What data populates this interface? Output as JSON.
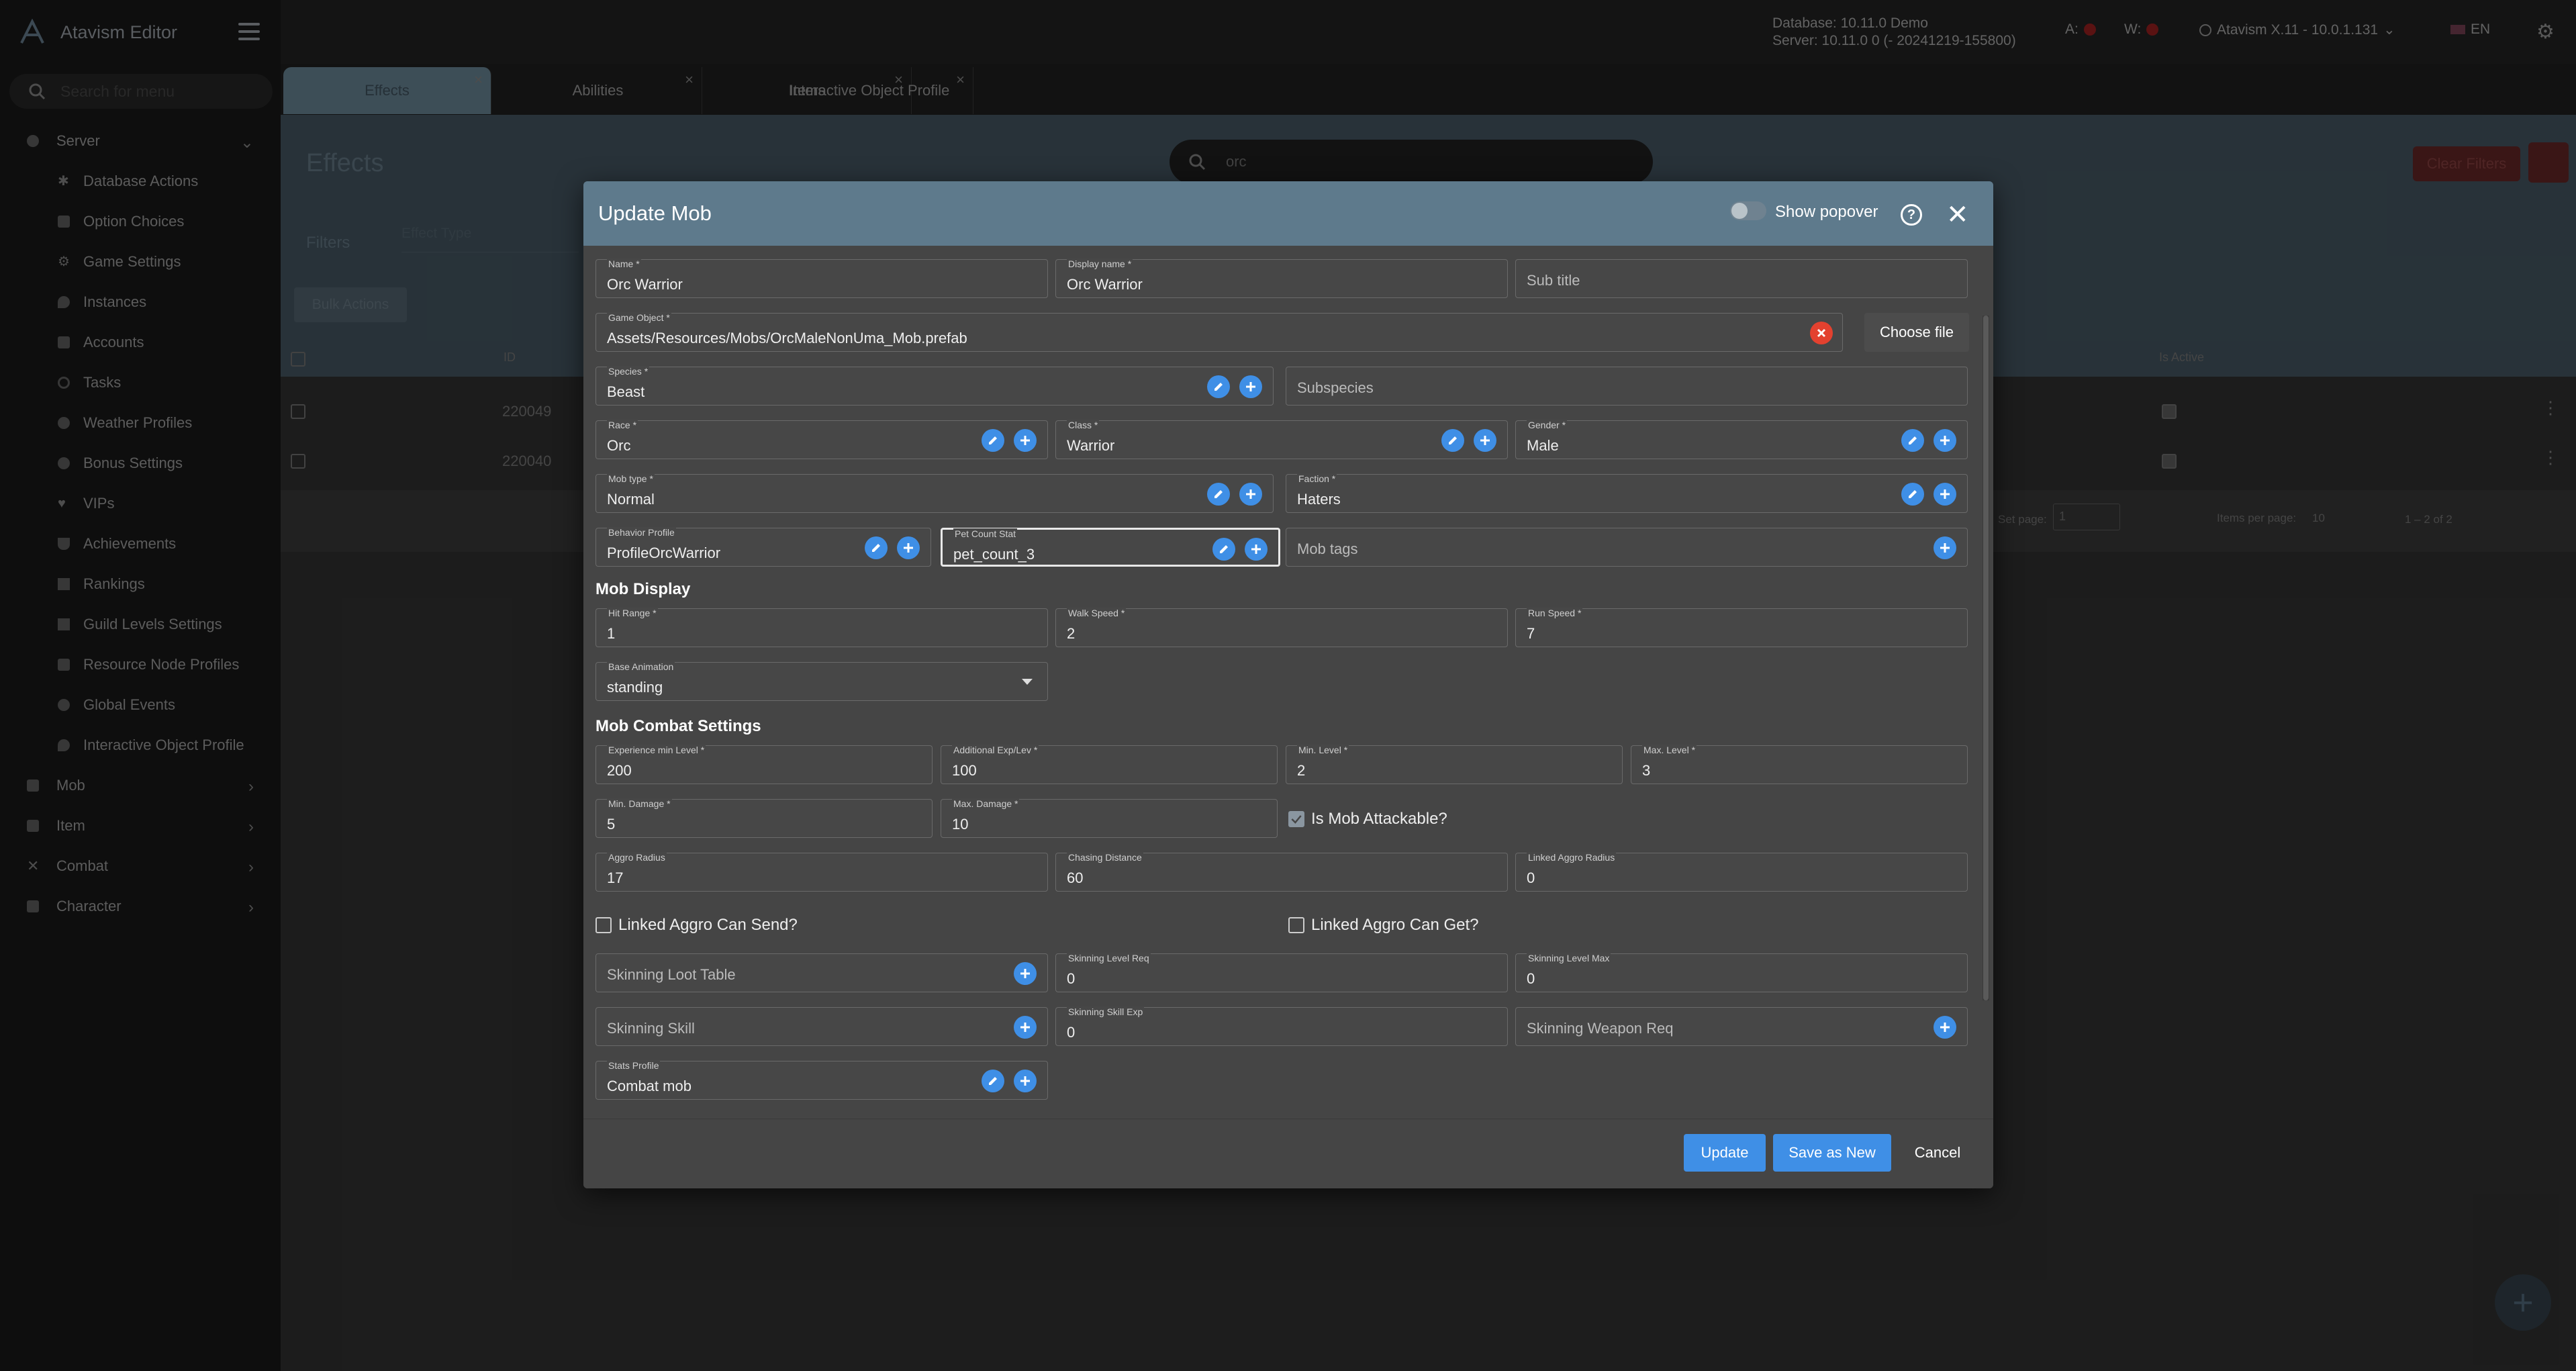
{
  "app": {
    "brand": "Atavism Editor",
    "search_placeholder": "Search for menu",
    "db_line1": "Database: 10.11.0 Demo",
    "db_line2": "Server: 10.11.0 0 (- 20241219-155800)",
    "a_label": "A:",
    "w_label": "W:",
    "version": "Atavism X.11 - 10.0.1.131",
    "lang": "EN"
  },
  "sidebar": {
    "server": "Server",
    "items": [
      {
        "label": "Database Actions",
        "icon": "asterisk-icon"
      },
      {
        "label": "Option Choices",
        "icon": "cube-icon"
      },
      {
        "label": "Game Settings",
        "icon": "gear-icon"
      },
      {
        "label": "Instances",
        "icon": "pin-icon"
      },
      {
        "label": "Accounts",
        "icon": "lock-icon"
      },
      {
        "label": "Tasks",
        "icon": "clock-icon"
      },
      {
        "label": "Weather Profiles",
        "icon": "sun-icon"
      },
      {
        "label": "Bonus Settings",
        "icon": "bonus-icon"
      },
      {
        "label": "VIPs",
        "icon": "heart-icon"
      },
      {
        "label": "Achievements",
        "icon": "trophy-icon"
      },
      {
        "label": "Rankings",
        "icon": "ranking-icon"
      },
      {
        "label": "Guild Levels Settings",
        "icon": "guild-icon"
      },
      {
        "label": "Resource Node Profiles",
        "icon": "resource-icon"
      },
      {
        "label": "Global Events",
        "icon": "globe-icon"
      },
      {
        "label": "Interactive Object Profile",
        "icon": "pin-icon"
      }
    ],
    "mob": "Mob",
    "item": "Item",
    "combat": "Combat",
    "character": "Character"
  },
  "tabs": [
    {
      "label": "Effects",
      "active": true
    },
    {
      "label": "Abilities",
      "active": false
    },
    {
      "label": "Items",
      "active": false
    },
    {
      "label": "Interactive Object Profile",
      "active": false
    }
  ],
  "page": {
    "title": "Effects",
    "search_value": "orc",
    "clear_filters": "Clear Filters",
    "filters": "Filters",
    "effect_type": "Effect Type",
    "bulk_actions": "Bulk Actions",
    "col_id": "ID",
    "col_active": "Is Active",
    "rows": [
      {
        "id": "220049"
      },
      {
        "id": "220040"
      }
    ],
    "set_page": "Set page:",
    "set_page_value": "1",
    "items_per_page": "Items per page:",
    "items_per_page_value": "10",
    "range": "1 – 2 of 2"
  },
  "modal": {
    "title": "Update Mob",
    "show_popover": "Show popover",
    "fields": {
      "name": {
        "label": "Name *",
        "value": "Orc Warrior"
      },
      "display_name": {
        "label": "Display name *",
        "value": "Orc Warrior"
      },
      "sub_title": {
        "placeholder": "Sub title"
      },
      "game_object": {
        "label": "Game Object *",
        "value": "Assets/Resources/Mobs/OrcMaleNonUma_Mob.prefab"
      },
      "choose_file": "Choose file",
      "species": {
        "label": "Species *",
        "value": "Beast"
      },
      "subspecies": {
        "placeholder": "Subspecies"
      },
      "race": {
        "label": "Race *",
        "value": "Orc"
      },
      "class": {
        "label": "Class *",
        "value": "Warrior"
      },
      "gender": {
        "label": "Gender *",
        "value": "Male"
      },
      "mob_type": {
        "label": "Mob type *",
        "value": "Normal"
      },
      "faction": {
        "label": "Faction *",
        "value": "Haters"
      },
      "behavior_profile": {
        "label": "Behavior Profile",
        "value": "ProfileOrcWarrior"
      },
      "pet_count_stat": {
        "label": "Pet Count Stat",
        "value": "pet_count_3"
      },
      "mob_tags": {
        "placeholder": "Mob tags"
      },
      "hit_range": {
        "label": "Hit Range *",
        "value": "1"
      },
      "walk_speed": {
        "label": "Walk Speed *",
        "value": "2"
      },
      "run_speed": {
        "label": "Run Speed *",
        "value": "7"
      },
      "base_animation": {
        "label": "Base Animation",
        "value": "standing"
      },
      "exp_min_level": {
        "label": "Experience min Level *",
        "value": "200"
      },
      "additional_exp": {
        "label": "Additional Exp/Lev *",
        "value": "100"
      },
      "min_level": {
        "label": "Min. Level *",
        "value": "2"
      },
      "max_level": {
        "label": "Max. Level *",
        "value": "3"
      },
      "min_damage": {
        "label": "Min. Damage *",
        "value": "5"
      },
      "max_damage": {
        "label": "Max. Damage *",
        "value": "10"
      },
      "is_attackable": {
        "label": "Is Mob Attackable?",
        "checked": true
      },
      "aggro_radius": {
        "label": "Aggro Radius",
        "value": "17"
      },
      "chasing_distance": {
        "label": "Chasing Distance",
        "value": "60"
      },
      "linked_aggro_radius": {
        "label": "Linked Aggro Radius",
        "value": "0"
      },
      "linked_send": {
        "label": "Linked Aggro Can Send?",
        "checked": false
      },
      "linked_get": {
        "label": "Linked Aggro Can Get?",
        "checked": false
      },
      "skinning_loot": {
        "placeholder": "Skinning Loot Table"
      },
      "skinning_level_req": {
        "label": "Skinning Level Req",
        "value": "0"
      },
      "skinning_level_max": {
        "label": "Skinning Level Max",
        "value": "0"
      },
      "skinning_skill": {
        "placeholder": "Skinning Skill"
      },
      "skinning_skill_exp": {
        "label": "Skinning Skill Exp",
        "value": "0"
      },
      "skinning_weapon": {
        "placeholder": "Skinning Weapon Req"
      },
      "stats_profile": {
        "label": "Stats Profile",
        "value": "Combat mob"
      }
    },
    "sections": {
      "display": "Mob Display",
      "combat": "Mob Combat Settings"
    },
    "buttons": {
      "update": "Update",
      "save_new": "Save as New",
      "cancel": "Cancel"
    }
  },
  "colors": {
    "accent": "#3f8fe6",
    "header": "#5e7a8c",
    "danger": "#e3412f"
  }
}
